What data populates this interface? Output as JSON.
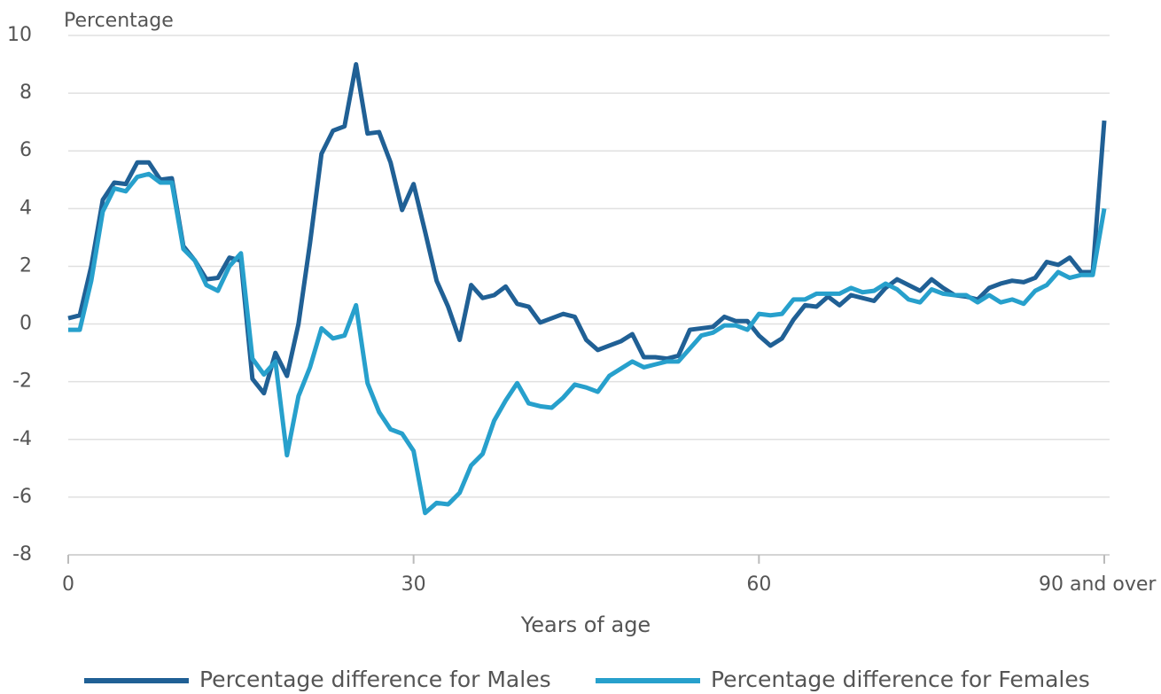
{
  "chart_data": {
    "type": "line",
    "y_label": "Percentage",
    "x_label": "Years of age",
    "x": [
      0,
      1,
      2,
      3,
      4,
      5,
      6,
      7,
      8,
      9,
      10,
      11,
      12,
      13,
      14,
      15,
      16,
      17,
      18,
      19,
      20,
      21,
      22,
      23,
      24,
      25,
      26,
      27,
      28,
      29,
      30,
      31,
      32,
      33,
      34,
      35,
      36,
      37,
      38,
      39,
      40,
      41,
      42,
      43,
      44,
      45,
      46,
      47,
      48,
      49,
      50,
      51,
      52,
      53,
      54,
      55,
      56,
      57,
      58,
      59,
      60,
      61,
      62,
      63,
      64,
      65,
      66,
      67,
      68,
      69,
      70,
      71,
      72,
      73,
      74,
      75,
      76,
      77,
      78,
      79,
      80,
      81,
      82,
      83,
      84,
      85,
      86,
      87,
      88,
      89,
      90
    ],
    "series": [
      {
        "name": "Percentage difference for Males",
        "color": "#206095",
        "values": [
          0.2,
          0.3,
          2.0,
          4.3,
          4.9,
          4.85,
          5.6,
          5.6,
          5.0,
          5.05,
          2.7,
          2.2,
          1.55,
          1.6,
          2.3,
          2.2,
          -1.9,
          -2.4,
          -1.0,
          -1.8,
          0.0,
          2.8,
          5.9,
          6.7,
          6.85,
          9.0,
          6.6,
          6.65,
          5.6,
          3.95,
          4.85,
          3.2,
          1.5,
          0.6,
          -0.55,
          1.35,
          0.9,
          1.0,
          1.3,
          0.7,
          0.6,
          0.05,
          0.2,
          0.35,
          0.25,
          -0.55,
          -0.9,
          -0.75,
          -0.6,
          -0.35,
          -1.15,
          -1.15,
          -1.2,
          -1.1,
          -0.2,
          -0.15,
          -0.1,
          0.25,
          0.1,
          0.1,
          -0.4,
          -0.75,
          -0.5,
          0.15,
          0.65,
          0.6,
          0.95,
          0.65,
          1.0,
          0.9,
          0.8,
          1.25,
          1.55,
          1.35,
          1.15,
          1.55,
          1.25,
          1.0,
          0.95,
          0.85,
          1.25,
          1.4,
          1.5,
          1.45,
          1.6,
          2.15,
          2.05,
          2.3,
          1.8,
          1.8,
          7.05
        ]
      },
      {
        "name": "Percentage difference for Females",
        "color": "#27a0cc",
        "values": [
          -0.2,
          -0.2,
          1.5,
          3.9,
          4.7,
          4.6,
          5.1,
          5.2,
          4.9,
          4.9,
          2.6,
          2.2,
          1.35,
          1.15,
          2.0,
          2.45,
          -1.2,
          -1.75,
          -1.3,
          -4.55,
          -2.5,
          -1.5,
          -0.15,
          -0.5,
          -0.4,
          0.65,
          -2.05,
          -3.05,
          -3.65,
          -3.8,
          -4.4,
          -6.55,
          -6.2,
          -6.25,
          -5.85,
          -4.9,
          -4.5,
          -3.35,
          -2.65,
          -2.05,
          -2.75,
          -2.85,
          -2.9,
          -2.55,
          -2.1,
          -2.2,
          -2.35,
          -1.8,
          -1.55,
          -1.3,
          -1.5,
          -1.4,
          -1.3,
          -1.3,
          -0.85,
          -0.4,
          -0.3,
          -0.05,
          -0.05,
          -0.2,
          0.35,
          0.3,
          0.35,
          0.85,
          0.85,
          1.05,
          1.05,
          1.05,
          1.25,
          1.1,
          1.15,
          1.4,
          1.2,
          0.85,
          0.75,
          1.2,
          1.05,
          1.0,
          1.0,
          0.75,
          1.0,
          0.75,
          0.85,
          0.7,
          1.15,
          1.35,
          1.8,
          1.6,
          1.7,
          1.7,
          4.0
        ]
      }
    ],
    "xlim": [
      0,
      90
    ],
    "xticks": [
      0,
      30,
      60,
      {
        "value": 90,
        "label": "90 and over"
      }
    ],
    "ylim": [
      -8,
      10
    ],
    "yticks": [
      -8,
      -6,
      -4,
      -2,
      0,
      2,
      4,
      6,
      8,
      10
    ],
    "grid": true
  }
}
